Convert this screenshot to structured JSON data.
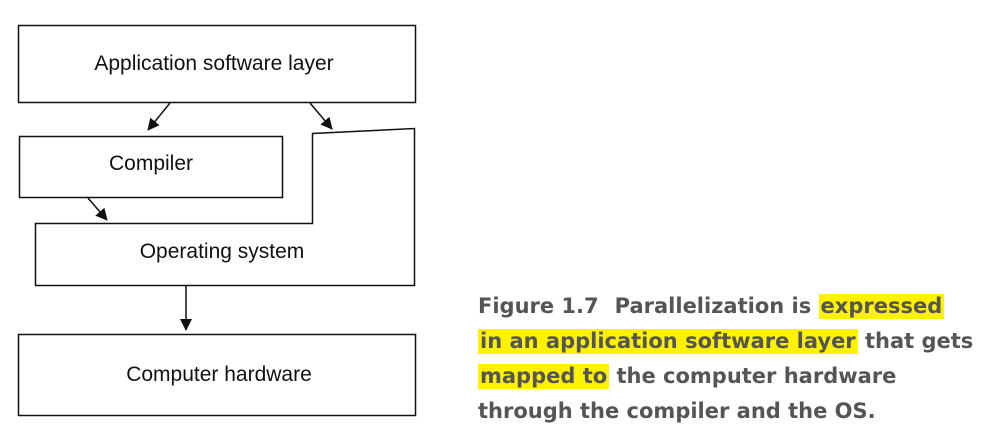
{
  "diagram": {
    "layers": {
      "application": "Application software layer",
      "compiler": "Compiler",
      "os": "Operating system",
      "hardware": "Computer hardware"
    }
  },
  "caption": {
    "label": "Figure 1.7",
    "segments": [
      {
        "text": "Parallelization is ",
        "highlight": false
      },
      {
        "text": "expressed",
        "highlight": true
      },
      {
        "text": "in an application software layer",
        "highlight": true
      },
      {
        "text": " that gets",
        "highlight": false
      },
      {
        "text": "mapped to",
        "highlight": true
      },
      {
        "text": " the computer hardware",
        "highlight": false
      },
      {
        "text": "through the compiler and the OS.",
        "highlight": false
      }
    ],
    "highlight_color": "#fff200",
    "text_color": "#555555"
  }
}
